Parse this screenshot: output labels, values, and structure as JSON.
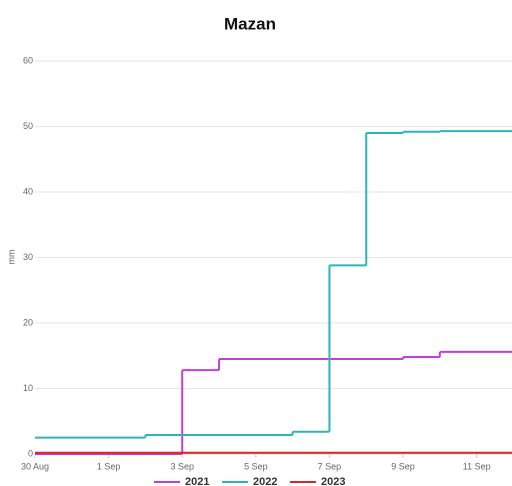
{
  "chart_data": {
    "type": "line",
    "step": "after",
    "title": "Mazan",
    "ylabel": "mm",
    "xlim": [
      0,
      12.96
    ],
    "xticks": [
      {
        "value": 0,
        "label": "30 Aug"
      },
      {
        "value": 2,
        "label": "1 Sep"
      },
      {
        "value": 4,
        "label": "3 Sep"
      },
      {
        "value": 6,
        "label": "5 Sep"
      },
      {
        "value": 8,
        "label": "7 Sep"
      },
      {
        "value": 10,
        "label": "9 Sep"
      },
      {
        "value": 12,
        "label": "11 Sep"
      }
    ],
    "ylim": [
      0,
      60
    ],
    "yticks": [
      0,
      10,
      20,
      30,
      40,
      50,
      60
    ],
    "grid": true,
    "legend": "bottom",
    "series": [
      {
        "name": "2021",
        "color": "#c23fd8",
        "x": [
          0,
          4,
          5,
          10,
          11
        ],
        "values": [
          0,
          12.8,
          14.5,
          14.8,
          15.6
        ]
      },
      {
        "name": "2022",
        "color": "#2bb5b8",
        "x": [
          0,
          3,
          7,
          8,
          9,
          10,
          11
        ],
        "values": [
          2.5,
          2.9,
          3.4,
          28.8,
          49.0,
          49.2,
          49.3
        ]
      },
      {
        "name": "2023",
        "color": "#d6282b",
        "x": [
          0
        ],
        "values": [
          0.2
        ]
      }
    ]
  }
}
